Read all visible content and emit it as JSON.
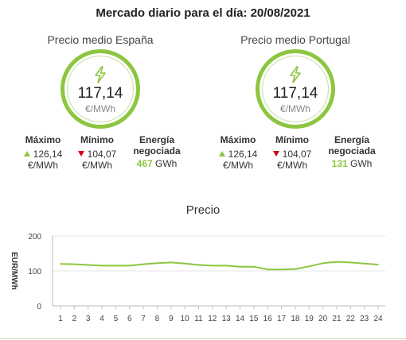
{
  "header": {
    "title": "Mercado diario para el día: 20/08/2021"
  },
  "accent_color": "#8cc63f",
  "down_color": "#d0021b",
  "icon": "lightning-bolt-icon",
  "spain": {
    "title": "Precio medio España",
    "price": "117,14",
    "unit": "€/MWh",
    "max_label": "Máximo",
    "max_value": "126,14",
    "max_unit": "€/MWh",
    "min_label": "Mínimo",
    "min_value": "104,07",
    "min_unit": "€/MWh",
    "energy_label_1": "Energía",
    "energy_label_2": "negociada",
    "energy_value": "467",
    "energy_unit": "GWh"
  },
  "portugal": {
    "title": "Precio medio Portugal",
    "price": "117,14",
    "unit": "€/MWh",
    "max_label": "Máximo",
    "max_value": "126,14",
    "max_unit": "€/MWh",
    "min_label": "Mínimo",
    "min_value": "104,07",
    "min_unit": "€/MWh",
    "energy_label_1": "Energía",
    "energy_label_2": "negociada",
    "energy_value": "131",
    "energy_unit": "GWh"
  },
  "chart_data": {
    "type": "line",
    "title": "Precio",
    "ylabel": "EUR/MWh",
    "xlabel": "",
    "x": [
      1,
      2,
      3,
      4,
      5,
      6,
      7,
      8,
      9,
      10,
      11,
      12,
      13,
      14,
      15,
      16,
      17,
      18,
      19,
      20,
      21,
      22,
      23,
      24
    ],
    "series": [
      {
        "values": [
          120,
          119,
          117,
          115,
          115,
          115,
          119,
          122,
          124,
          121,
          117,
          115,
          115,
          112,
          112,
          104,
          104,
          105,
          113,
          122,
          126,
          124,
          121,
          118
        ]
      }
    ],
    "ylim": [
      0,
      200
    ],
    "yticks": [
      0,
      100,
      200
    ],
    "grid": true,
    "line_color": "#8cc63f"
  }
}
